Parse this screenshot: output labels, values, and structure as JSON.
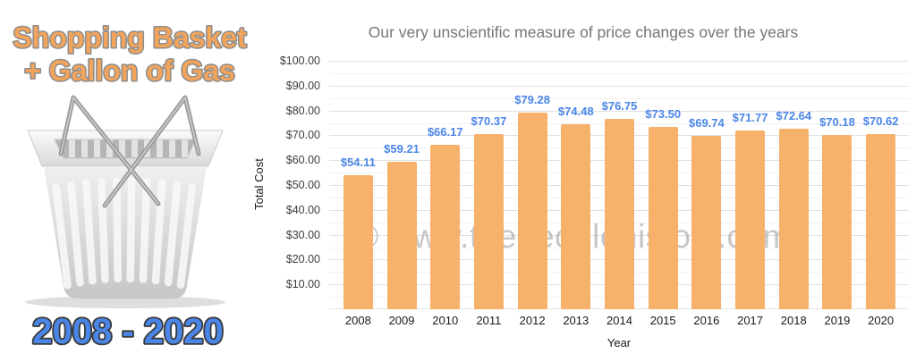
{
  "left_panel": {
    "title_line1": "Shopping Basket",
    "title_line2": "+ Gallon of Gas",
    "year_range": "2008 - 2020",
    "title_color": "#f2a45c",
    "title_outline_color": "#8d8d8d",
    "year_range_color": "#4a86e8",
    "basket_icon": "shopping-basket-icon"
  },
  "watermark": "© www.thepeoplehistory.com",
  "chart_data": {
    "type": "bar",
    "title": "Our very unscientific measure of price changes over the years",
    "xlabel": "Year",
    "ylabel": "Total Cost",
    "categories": [
      "2008",
      "2009",
      "2010",
      "2011",
      "2012",
      "2013",
      "2014",
      "2015",
      "2016",
      "2017",
      "2018",
      "2019",
      "2020"
    ],
    "values": [
      54.11,
      59.21,
      66.17,
      70.37,
      79.28,
      74.48,
      76.75,
      73.5,
      69.74,
      71.77,
      72.64,
      70.18,
      70.62
    ],
    "value_labels": [
      "$54.11",
      "$59.21",
      "$66.17",
      "$70.37",
      "$79.28",
      "$74.48",
      "$76.75",
      "$73.50",
      "$69.74",
      "$71.77",
      "$72.64",
      "$70.18",
      "$70.62"
    ],
    "ylim": [
      0,
      100
    ],
    "ytick_step": 10,
    "ytick_minor_step": 5,
    "ytick_labels": [
      "$10.00",
      "$20.00",
      "$30.00",
      "$40.00",
      "$50.00",
      "$60.00",
      "$70.00",
      "$80.00",
      "$90.00",
      "$100.00"
    ],
    "grid": true,
    "legend": "none",
    "bar_color": "#f6b26b",
    "data_label_color": "#4a86e8",
    "title_color": "#757575",
    "gridline_major_color": "#e0e0e0",
    "gridline_minor_color": "#f2f2f2"
  }
}
